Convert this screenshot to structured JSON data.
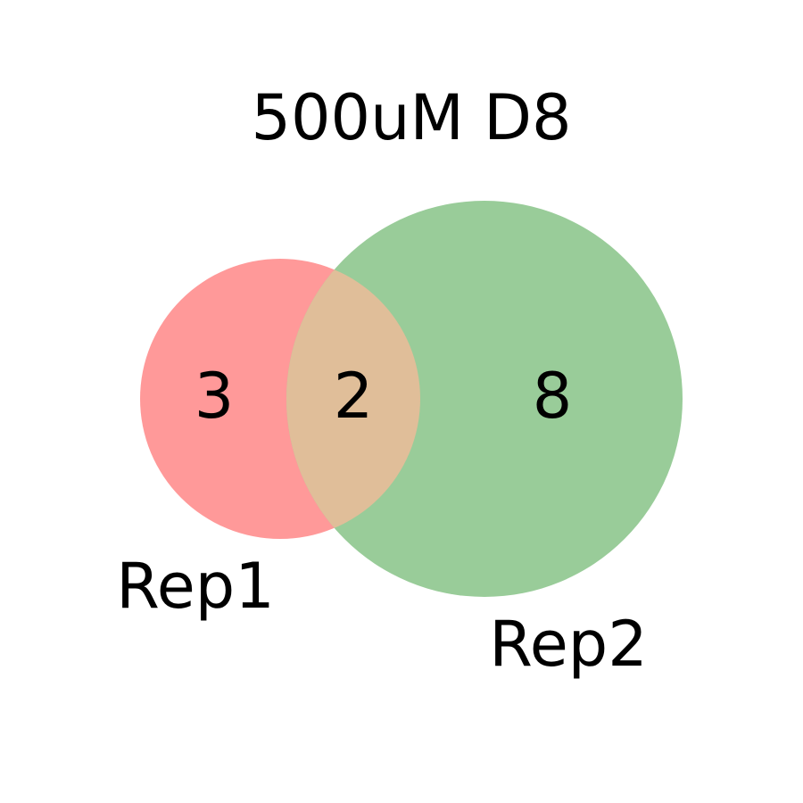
{
  "title": "500uM D8",
  "colors": {
    "rep1": "#ff9999",
    "rep2": "#99cc99",
    "overlap": "#e0be99",
    "text": "#000000",
    "background": "#ffffff"
  },
  "sets": [
    {
      "name": "Rep1",
      "size": 5
    },
    {
      "name": "Rep2",
      "size": 10
    }
  ],
  "regions": {
    "rep1_only": "3",
    "overlap": "2",
    "rep2_only": "8"
  }
}
